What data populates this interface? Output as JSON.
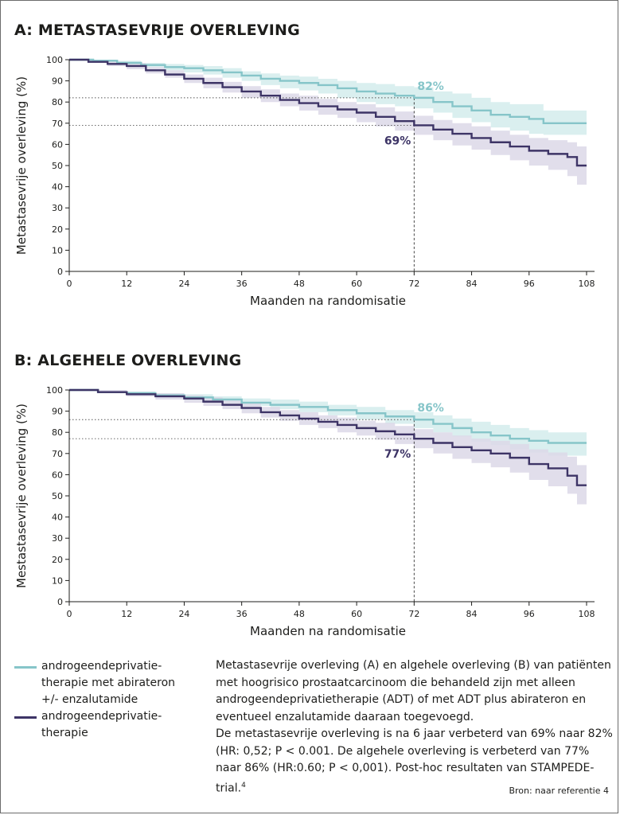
{
  "chart_data": [
    {
      "type": "line",
      "step": true,
      "title": "A: METASTASEVRIJE OVERLEVING",
      "xlabel": "Maanden na randomisatie",
      "ylabel": "Metastasevrije overleving (%)",
      "xlim": [
        0,
        108
      ],
      "ylim": [
        0,
        100
      ],
      "xticks": [
        0,
        12,
        24,
        36,
        48,
        60,
        72,
        84,
        96,
        108
      ],
      "yticks": [
        0,
        10,
        20,
        30,
        40,
        50,
        60,
        70,
        80,
        90,
        100
      ],
      "marker": {
        "x": 72,
        "labels": [
          "82%",
          "69%"
        ]
      },
      "series": [
        {
          "name": "androgeendeprivatietherapie met abirateron +/- enzalutamide",
          "color": "#86c5c9",
          "band_color": "#d4ecec",
          "x": [
            0,
            5,
            10,
            15,
            20,
            24,
            28,
            32,
            36,
            40,
            44,
            48,
            52,
            56,
            60,
            64,
            68,
            72,
            76,
            80,
            84,
            88,
            92,
            96,
            99,
            102,
            108
          ],
          "y": [
            100,
            99.5,
            98.5,
            97.5,
            96.5,
            96,
            95,
            94,
            92.5,
            91,
            90,
            89,
            88,
            86.5,
            85,
            84,
            83,
            82,
            80,
            78,
            76,
            74,
            73,
            72,
            70,
            70,
            70
          ],
          "lower": [
            100,
            99,
            97.5,
            96.5,
            95,
            94,
            93,
            91.5,
            90,
            88,
            86.5,
            85.5,
            84,
            82,
            80,
            79,
            78,
            77,
            75,
            72.5,
            70.5,
            68,
            66.5,
            65,
            64.5,
            64.5,
            64.5
          ],
          "upper": [
            100,
            100,
            99.5,
            98.5,
            98,
            97.5,
            97,
            96,
            94.5,
            93.5,
            92.5,
            92,
            91,
            90,
            89,
            88.5,
            87.5,
            87,
            85,
            84,
            82,
            80,
            79,
            79,
            76,
            76,
            76
          ]
        },
        {
          "name": "androgeendeprivatietherapie",
          "color": "#3d3466",
          "band_color": "#dcd8e8",
          "x": [
            0,
            4,
            8,
            12,
            16,
            20,
            24,
            28,
            32,
            36,
            40,
            44,
            48,
            52,
            56,
            60,
            64,
            68,
            72,
            76,
            80,
            84,
            88,
            92,
            96,
            100,
            104,
            106,
            108
          ],
          "y": [
            100,
            99,
            98,
            97,
            95,
            93,
            91,
            89,
            87,
            85,
            83,
            81,
            79.5,
            78,
            76.5,
            75,
            73,
            71,
            69,
            67,
            65,
            63,
            61,
            59,
            57,
            55.5,
            54,
            50,
            50
          ],
          "lower": [
            100,
            98.5,
            97,
            95.5,
            93.5,
            91.5,
            89,
            86.5,
            84.5,
            82,
            80,
            78,
            76,
            74,
            72.5,
            70.5,
            68.5,
            66.5,
            64.5,
            62,
            59.5,
            57.5,
            55,
            52.5,
            50,
            48,
            45,
            41,
            41
          ],
          "upper": [
            100,
            100,
            99,
            98.5,
            96.5,
            95,
            93,
            91.5,
            89.5,
            87.5,
            86,
            84,
            83,
            81.5,
            80,
            79,
            77.5,
            75.5,
            73.5,
            71.5,
            70,
            68.5,
            66.5,
            64.5,
            63,
            62,
            61,
            59,
            59
          ]
        }
      ]
    },
    {
      "type": "line",
      "step": true,
      "title": "B: ALGEHELE OVERLEVING",
      "xlabel": "Maanden na randomisatie",
      "ylabel": "Mestastasevrije overleving (%)",
      "xlim": [
        0,
        108
      ],
      "ylim": [
        0,
        100
      ],
      "xticks": [
        0,
        12,
        24,
        36,
        48,
        60,
        72,
        84,
        96,
        108
      ],
      "yticks": [
        0,
        10,
        20,
        30,
        40,
        50,
        60,
        70,
        80,
        90,
        100
      ],
      "marker": {
        "x": 72,
        "labels": [
          "86%",
          "77%"
        ]
      },
      "series": [
        {
          "name": "androgeendeprivatietherapie met abirateron +/- enzalutamide",
          "color": "#86c5c9",
          "band_color": "#d4ecec",
          "x": [
            0,
            6,
            12,
            18,
            24,
            30,
            36,
            42,
            48,
            54,
            60,
            66,
            72,
            76,
            80,
            84,
            88,
            92,
            96,
            100,
            108
          ],
          "y": [
            100,
            99,
            98.5,
            97.5,
            96.5,
            95.5,
            94,
            93,
            92,
            90.5,
            89,
            87.5,
            86,
            84,
            82,
            80,
            78.5,
            77,
            76,
            75,
            75
          ],
          "lower": [
            100,
            98.5,
            97.5,
            96.5,
            95,
            94,
            92.5,
            91,
            89.5,
            88,
            86,
            84,
            82,
            80,
            78,
            75.5,
            74,
            72,
            70.5,
            69,
            69
          ],
          "upper": [
            100,
            99.8,
            99.3,
            98.5,
            98,
            97,
            96,
            95.5,
            94.5,
            93,
            92,
            90.5,
            89.5,
            88,
            86.5,
            85,
            83.5,
            82,
            81,
            80,
            80
          ]
        },
        {
          "name": "androgeendeprivatietherapie",
          "color": "#3d3466",
          "band_color": "#dcd8e8",
          "x": [
            0,
            6,
            12,
            18,
            24,
            28,
            32,
            36,
            40,
            44,
            48,
            52,
            56,
            60,
            64,
            68,
            72,
            76,
            80,
            84,
            88,
            92,
            96,
            100,
            104,
            106,
            108
          ],
          "y": [
            100,
            99,
            98,
            97,
            96,
            94.5,
            93,
            91.5,
            89.5,
            88,
            86.5,
            85,
            83.5,
            82,
            80.5,
            79,
            77,
            75,
            73,
            71.5,
            70,
            68,
            65,
            63,
            59.5,
            55,
            55
          ],
          "lower": [
            100,
            98.5,
            97,
            95.5,
            94,
            92.5,
            91,
            89,
            87,
            85.5,
            83.5,
            82,
            80,
            78.5,
            76.5,
            74.5,
            72.5,
            70,
            67.5,
            65.5,
            63.5,
            61,
            57.5,
            54.5,
            51,
            46,
            46
          ],
          "upper": [
            100,
            100,
            99,
            98.5,
            97.5,
            96.5,
            95,
            94,
            92,
            90.5,
            89.5,
            88,
            87,
            85.5,
            84.5,
            83,
            81.5,
            80,
            78.5,
            77,
            76,
            74.5,
            72,
            70.5,
            68.5,
            64.5,
            64.5
          ]
        }
      ]
    }
  ],
  "legend": {
    "items": [
      {
        "label": "androgeendeprivatietherapie met abirateron +/- enzalutamide",
        "color": "#86c5c9"
      },
      {
        "label": "androgeendeprivatietherapie",
        "color": "#3d3466"
      }
    ]
  },
  "legend_display": [
    {
      "line1": "androgeendeprivatie-",
      "line2": "therapie met abirateron",
      "line3": "+/- enzalutamide"
    },
    {
      "line1": "androgeendeprivatie-",
      "line2": "therapie"
    }
  ],
  "caption": {
    "text1": "Metastasevrije overleving (A) en algehele overleving (B) van patiënten met hoogrisico prostaatcarcinoom die behandeld zijn met alleen androgeendeprivatietherapie (ADT) of met ADT plus abirateron en eventueel enzalutamide daaraan toegevoegd.",
    "text2": "De metastasevrije overleving is na 6 jaar verbeterd van 69% naar 82% (HR: 0,52; P < 0.001. De algehele overleving is verbeterd van 77% naar 86% (HR:0.60; P < 0,001). Post-hoc resultaten van STAMPEDE-trial.",
    "ref": "4"
  },
  "source": "Bron: naar referentie 4"
}
